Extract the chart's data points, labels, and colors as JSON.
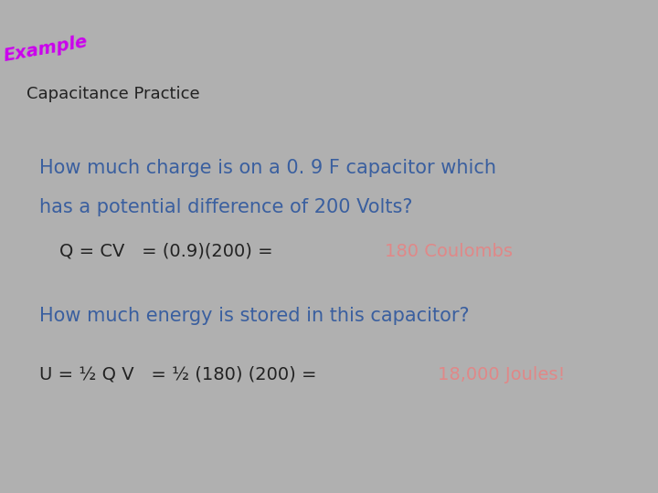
{
  "bg_color": "#b0b0b0",
  "title": "Capacitance Practice",
  "title_color": "#222222",
  "title_fontsize": 13,
  "example_text": "Example",
  "example_color": "#cc00ee",
  "example_fontsize": 14,
  "q1_line1": "How much charge is on a 0. 9 F capacitor which",
  "q1_line2": "has a potential difference of 200 Volts?",
  "q1_color": "#3a5f9f",
  "q1_fontsize": 15,
  "eq1_black": "Q = CV   = (0.9)(200) = ",
  "eq1_red": "180 Coulombs",
  "eq_black_color": "#222222",
  "eq_red_color": "#e08888",
  "eq1_fontsize": 14,
  "q2_text": "How much energy is stored in this capacitor?",
  "q2_color": "#3a5f9f",
  "q2_fontsize": 15,
  "eq2_black": "U = ½ Q V   = ½ (180) (200) = ",
  "eq2_red": "18,000 Joules!",
  "eq2_fontsize": 14,
  "fig_width": 7.2,
  "fig_height": 5.4,
  "dpi": 100
}
